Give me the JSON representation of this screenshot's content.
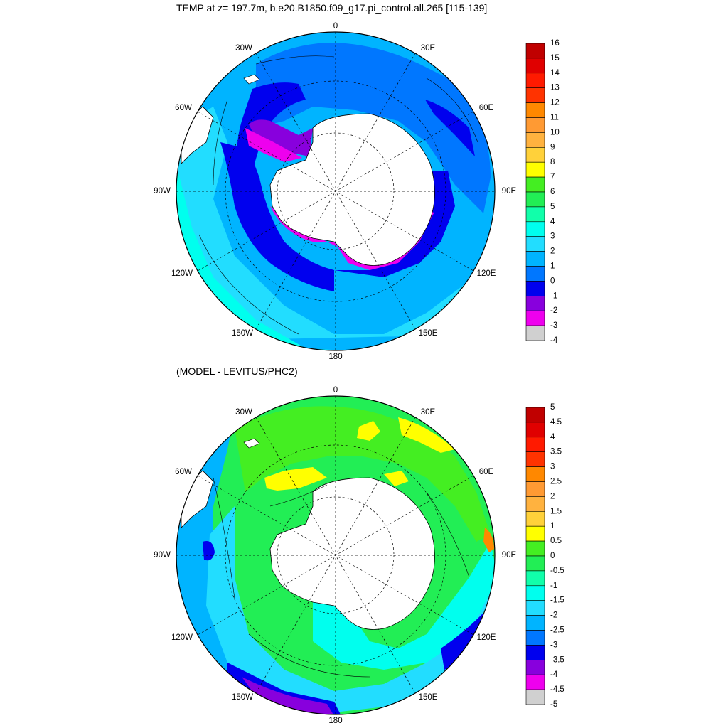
{
  "header": {
    "title": "TEMP at z= 197.7m, b.e20.B1850.f09_g17.pi_control.all.265 [115-139]",
    "diff_title": "(MODEL - LEVITUS/PHC2)"
  },
  "longitude_labels": [
    "0",
    "30E",
    "60E",
    "90E",
    "120E",
    "150E",
    "180",
    "150W",
    "120W",
    "90W",
    "60W",
    "30W"
  ],
  "top_panel": {
    "colorbar": {
      "labels": [
        "16",
        "15",
        "14",
        "13",
        "12",
        "11",
        "10",
        "9",
        "8",
        "7",
        "6",
        "5",
        "4",
        "3",
        "2",
        "1",
        "0",
        "-1",
        "-2",
        "-3",
        "-4"
      ],
      "colors": [
        "#c00000",
        "#e00000",
        "#ff1a00",
        "#ff3300",
        "#ff8800",
        "#ff9a33",
        "#ffb23f",
        "#ffd13a",
        "#ffff00",
        "#44ee22",
        "#22ee55",
        "#11ffaa",
        "#00ffee",
        "#22ddff",
        "#00b4ff",
        "#0077ff",
        "#0000ee",
        "#8800dd",
        "#ee00ee",
        "#d0d0d0",
        "#707070"
      ]
    }
  },
  "bottom_panel": {
    "colorbar": {
      "labels": [
        "5",
        "4.5",
        "4",
        "3.5",
        "3",
        "2.5",
        "2",
        "1.5",
        "1",
        "0.5",
        "0",
        "-0.5",
        "-1",
        "-1.5",
        "-2",
        "-2.5",
        "-3",
        "-3.5",
        "-4",
        "-4.5",
        "-5"
      ],
      "colors": [
        "#c00000",
        "#e00000",
        "#ff1a00",
        "#ff3300",
        "#ff8800",
        "#ff9a33",
        "#ffb23f",
        "#ffd13a",
        "#ffff00",
        "#44ee22",
        "#22ee55",
        "#11ffaa",
        "#00ffee",
        "#22ddff",
        "#00b4ff",
        "#0077ff",
        "#0000ee",
        "#8800dd",
        "#ee00ee",
        "#d0d0d0",
        "#707070"
      ]
    }
  }
}
